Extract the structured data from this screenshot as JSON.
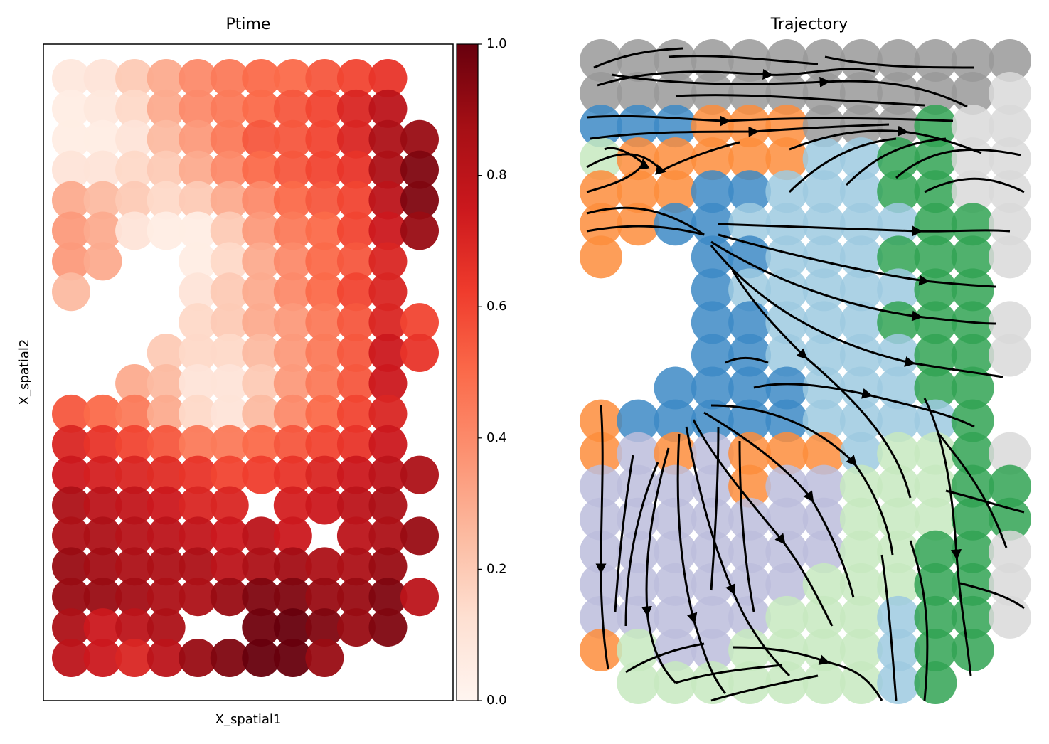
{
  "chart_data": [
    {
      "type": "spatial",
      "title": "Ptime",
      "xlabel": "X_spatial1",
      "ylabel": "X_spatial2",
      "colormap": [
        "#fff5f0",
        "#fee0d2",
        "#fcbba1",
        "#fc9272",
        "#fb6a4a",
        "#ef3b2c",
        "#cb181d",
        "#a50f15",
        "#67000d"
      ],
      "clim": [
        0,
        1
      ],
      "cticks": [
        {
          "value": 0,
          "label": "0.0"
        },
        0.2,
        0.4,
        0.6,
        0.8,
        {
          "value": 1,
          "label": "1.0"
        }
      ],
      "values": [
        [
          0.08,
          0.1,
          0.2,
          0.3,
          0.4,
          0.45,
          0.5,
          0.5,
          0.55,
          0.6,
          0.65,
          null
        ],
        [
          0.05,
          0.08,
          0.15,
          0.3,
          0.4,
          0.45,
          0.5,
          0.55,
          0.6,
          0.7,
          0.8,
          null
        ],
        [
          0.05,
          0.05,
          0.1,
          0.25,
          0.35,
          0.45,
          0.55,
          0.55,
          0.6,
          0.7,
          0.85,
          0.9
        ],
        [
          0.1,
          0.1,
          0.15,
          0.2,
          0.3,
          0.4,
          0.5,
          0.55,
          0.6,
          0.65,
          0.85,
          0.95
        ],
        [
          0.3,
          0.25,
          0.2,
          0.15,
          0.2,
          0.3,
          0.4,
          0.5,
          0.55,
          0.6,
          0.8,
          0.95
        ],
        [
          0.35,
          0.3,
          0.1,
          0.05,
          0.05,
          0.2,
          0.35,
          0.45,
          0.5,
          0.6,
          0.75,
          0.9
        ],
        [
          0.35,
          0.3,
          null,
          null,
          0.05,
          0.15,
          0.3,
          0.4,
          0.5,
          0.55,
          0.7,
          null
        ],
        [
          0.25,
          null,
          null,
          null,
          0.1,
          0.2,
          0.3,
          0.4,
          0.5,
          0.6,
          0.7,
          null
        ],
        [
          null,
          null,
          null,
          null,
          0.15,
          0.2,
          0.3,
          0.35,
          0.45,
          0.55,
          0.7,
          0.6
        ],
        [
          null,
          null,
          null,
          0.2,
          0.15,
          0.15,
          0.25,
          0.35,
          0.45,
          0.55,
          0.75,
          0.65
        ],
        [
          null,
          null,
          0.3,
          0.25,
          0.1,
          0.1,
          0.2,
          0.35,
          0.45,
          0.55,
          0.75,
          null
        ],
        [
          0.55,
          0.5,
          0.45,
          0.3,
          0.15,
          0.1,
          0.25,
          0.4,
          0.5,
          0.6,
          0.7,
          null
        ],
        [
          0.7,
          0.65,
          0.6,
          0.55,
          0.45,
          0.45,
          0.5,
          0.55,
          0.6,
          0.65,
          0.75,
          null
        ],
        [
          0.75,
          0.72,
          0.7,
          0.68,
          0.65,
          0.6,
          0.62,
          0.65,
          0.7,
          0.75,
          0.8,
          0.85
        ],
        [
          0.85,
          0.8,
          0.78,
          0.75,
          0.7,
          0.7,
          null,
          0.72,
          0.75,
          0.8,
          0.85,
          null
        ],
        [
          0.85,
          0.85,
          0.82,
          0.8,
          0.78,
          0.75,
          0.8,
          0.75,
          null,
          0.8,
          0.85,
          0.9
        ],
        [
          0.9,
          0.88,
          0.85,
          0.85,
          0.85,
          0.8,
          0.85,
          0.88,
          0.85,
          0.85,
          0.9,
          null
        ],
        [
          0.9,
          0.9,
          0.88,
          0.85,
          0.85,
          0.9,
          0.95,
          0.95,
          0.9,
          0.9,
          0.95,
          0.8
        ],
        [
          0.85,
          0.75,
          0.8,
          0.85,
          null,
          null,
          0.98,
          1.0,
          0.95,
          0.9,
          0.95,
          null
        ],
        [
          0.8,
          0.75,
          0.7,
          0.8,
          0.9,
          0.95,
          1.0,
          1.0,
          0.9,
          null,
          null,
          null
        ]
      ]
    },
    {
      "type": "stream",
      "title": "Trajectory",
      "cluster_colors": [
        "#999999",
        "#3d8ac6",
        "#fd8d3c",
        "#9ecae1",
        "#31a354",
        "#bcbddc",
        "#c7e9c0",
        "#d9d9d9"
      ],
      "clusters": [
        [
          0,
          0,
          0,
          0,
          0,
          0,
          0,
          0,
          0,
          0,
          0,
          0
        ],
        [
          0,
          0,
          0,
          0,
          0,
          0,
          0,
          0,
          0,
          0,
          0,
          7
        ],
        [
          1,
          1,
          1,
          2,
          2,
          2,
          0,
          0,
          0,
          4,
          7,
          7
        ],
        [
          6,
          2,
          2,
          2,
          2,
          2,
          3,
          3,
          4,
          4,
          7,
          7
        ],
        [
          2,
          2,
          2,
          1,
          1,
          3,
          3,
          3,
          4,
          4,
          7,
          7
        ],
        [
          2,
          2,
          1,
          1,
          3,
          3,
          3,
          3,
          3,
          4,
          4,
          7
        ],
        [
          2,
          null,
          null,
          1,
          1,
          3,
          3,
          3,
          4,
          4,
          4,
          7
        ],
        [
          null,
          null,
          null,
          1,
          3,
          3,
          3,
          3,
          3,
          4,
          4,
          null
        ],
        [
          null,
          null,
          null,
          1,
          1,
          3,
          3,
          3,
          4,
          4,
          4,
          7
        ],
        [
          null,
          null,
          null,
          1,
          1,
          3,
          3,
          3,
          3,
          4,
          4,
          7
        ],
        [
          null,
          null,
          1,
          1,
          1,
          1,
          3,
          3,
          3,
          4,
          4,
          null
        ],
        [
          2,
          1,
          1,
          1,
          1,
          1,
          3,
          3,
          3,
          3,
          4,
          null
        ],
        [
          2,
          5,
          2,
          5,
          2,
          2,
          2,
          3,
          6,
          6,
          4,
          7
        ],
        [
          5,
          5,
          5,
          5,
          2,
          5,
          5,
          6,
          6,
          6,
          4,
          4
        ],
        [
          5,
          5,
          5,
          5,
          5,
          5,
          5,
          6,
          6,
          6,
          4,
          4
        ],
        [
          5,
          5,
          5,
          5,
          5,
          5,
          5,
          6,
          6,
          4,
          4,
          7
        ],
        [
          5,
          5,
          5,
          5,
          5,
          5,
          6,
          6,
          6,
          4,
          4,
          7
        ],
        [
          5,
          5,
          5,
          5,
          5,
          6,
          6,
          6,
          3,
          4,
          4,
          7
        ],
        [
          2,
          6,
          5,
          5,
          6,
          6,
          6,
          6,
          3,
          4,
          4,
          null
        ],
        [
          null,
          6,
          6,
          6,
          6,
          6,
          6,
          6,
          3,
          4,
          null,
          null
        ]
      ]
    }
  ]
}
